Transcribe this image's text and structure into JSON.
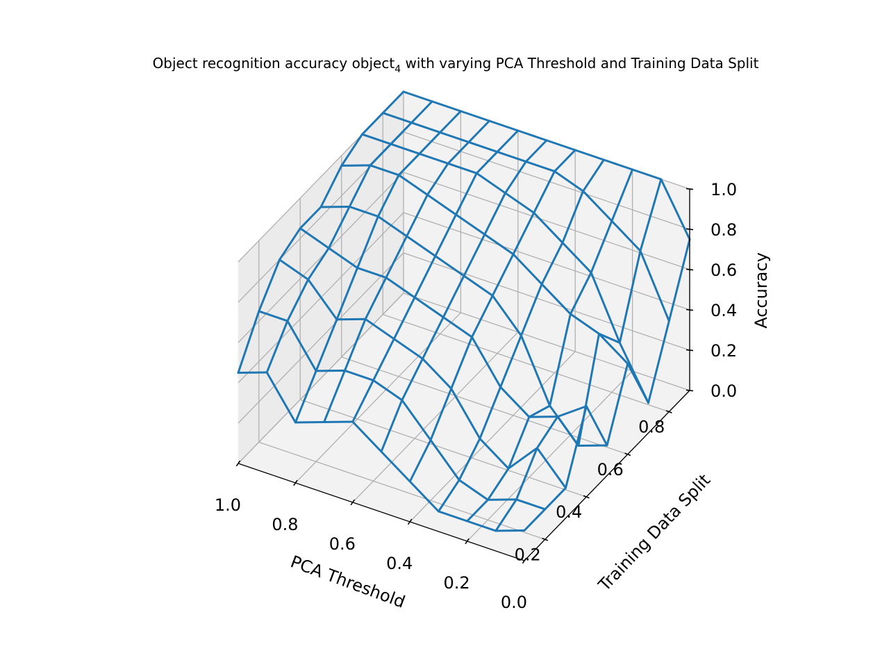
{
  "chart_data": {
    "type": "wireframe-3d",
    "title_main": "Object recognition accuracy object",
    "title_subscript": "4",
    "title_rest": " with varying PCA Threshold and Training Data Split",
    "xlabel": "PCA Threshold",
    "ylabel": "Training Data Split",
    "zlabel": "Accuracy",
    "xlim": [
      0.0,
      1.0
    ],
    "ylim": [
      0.1,
      0.9
    ],
    "zlim": [
      0.0,
      1.0
    ],
    "x_ticks": [
      "1.0",
      "0.8",
      "0.6",
      "0.4",
      "0.2",
      "0.0"
    ],
    "y_ticks": [
      "0.2",
      "0.4",
      "0.6",
      "0.8"
    ],
    "z_ticks": [
      "0.0",
      "0.2",
      "0.4",
      "0.6",
      "0.8",
      "1.0"
    ],
    "wire_color": "#1f77b4",
    "pca_threshold": [
      0.0,
      0.1,
      0.2,
      0.3,
      0.4,
      0.5,
      0.6,
      0.7,
      0.8,
      0.9,
      1.0
    ],
    "training_split": [
      0.1,
      0.2,
      0.3,
      0.4,
      0.5,
      0.6,
      0.7,
      0.8,
      0.9
    ],
    "accuracy_rows_by_threshold": [
      [
        0.15,
        0.15,
        0.15,
        0.45,
        0.15,
        0.45,
        0.15,
        0.45,
        0.75
      ],
      [
        0.1,
        0.15,
        0.3,
        0.35,
        0.1,
        0.55,
        0.4,
        0.75,
        1.0
      ],
      [
        0.1,
        0.1,
        0.15,
        0.3,
        0.25,
        0.6,
        0.7,
        0.85,
        1.0
      ],
      [
        0.1,
        0.15,
        0.25,
        0.4,
        0.55,
        0.7,
        0.8,
        0.95,
        1.0
      ],
      [
        0.2,
        0.3,
        0.45,
        0.6,
        0.7,
        0.8,
        0.9,
        1.0,
        1.0
      ],
      [
        0.3,
        0.45,
        0.55,
        0.65,
        0.75,
        0.85,
        0.95,
        1.0,
        1.0
      ],
      [
        0.4,
        0.5,
        0.6,
        0.7,
        0.8,
        0.9,
        1.0,
        1.0,
        1.0
      ],
      [
        0.35,
        0.5,
        0.65,
        0.75,
        0.85,
        0.95,
        1.0,
        1.0,
        1.0
      ],
      [
        0.3,
        0.45,
        0.6,
        0.75,
        0.9,
        1.0,
        1.0,
        1.0,
        1.0
      ],
      [
        0.5,
        0.65,
        0.75,
        0.8,
        0.9,
        1.0,
        1.0,
        1.0,
        1.0
      ],
      [
        0.45,
        0.65,
        0.8,
        0.85,
        0.85,
        0.95,
        1.0,
        1.0,
        1.0
      ]
    ],
    "grid": true
  }
}
